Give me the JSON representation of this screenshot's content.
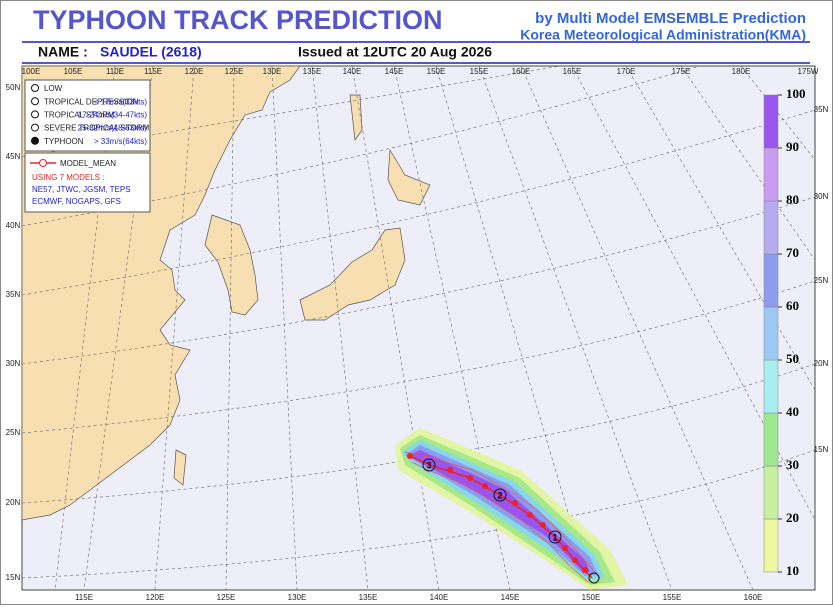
{
  "header": {
    "title": "TYPHOON  TRACK  PREDICTION",
    "source_line1": "by Multi Model EMSEMBLE Prediction",
    "source_line2": "Korea Meteorological Administration(KMA)",
    "name_label": "NAME :",
    "name": "SAUDEL (2618)",
    "issued": "Issued at  12UTC 20 Aug 2026"
  },
  "map": {
    "top_lon_labels": [
      "100E",
      "105E",
      "110E",
      "115E",
      "120E",
      "125E",
      "130E",
      "135E",
      "140E",
      "145E",
      "150E",
      "155E",
      "160E",
      "165E",
      "170E",
      "175E",
      "180E",
      "175W"
    ],
    "bottom_lon_labels": [
      "115E",
      "120E",
      "125E",
      "130E",
      "135E",
      "140E",
      "145E",
      "150E",
      "155E",
      "160E"
    ],
    "left_lat_labels": [
      "50N",
      "45N",
      "40N",
      "35N",
      "30N",
      "25N",
      "20N",
      "15N"
    ],
    "right_lat_labels": [
      "35N",
      "30N",
      "25N",
      "20N",
      "15N"
    ],
    "track_labels": [
      "1",
      "2",
      "3"
    ]
  },
  "legend": {
    "intensity": [
      {
        "label": "LOW"
      },
      {
        "label": "TROPICAL DEPRESSION",
        "wind": "< 17m/s(33kts)"
      },
      {
        "label": "TROPICAL STORM",
        "wind": "17-24m/s(34-47kts)"
      },
      {
        "label": "SEVERE TROPICAL STORM",
        "wind": "25-32m/s(48-63kts)"
      },
      {
        "label": "TYPHOON",
        "wind": "> 33m/s(64kts)"
      }
    ],
    "model_mean": "MODEL_MEAN",
    "models_title": "USING 7 MODELS :",
    "models_line1": "NE57, JTWC, JGSM, TEPS",
    "models_line2": "ECMWF, NOGAPS, GFS"
  },
  "colorbar": {
    "ticks": [
      10,
      20,
      30,
      40,
      50,
      60,
      70,
      80,
      90,
      100
    ]
  }
}
